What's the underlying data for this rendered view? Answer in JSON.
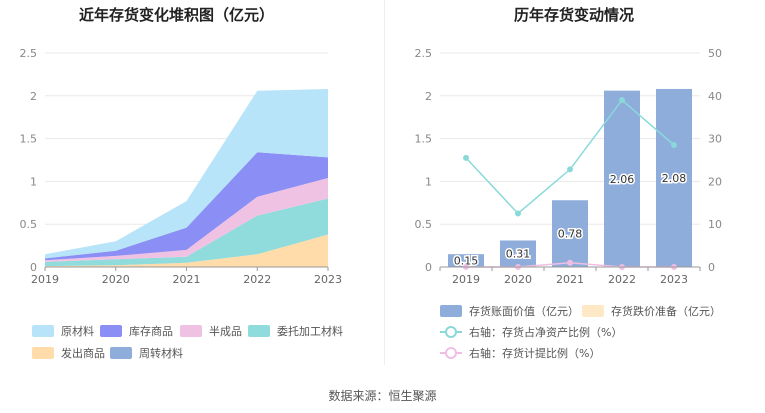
{
  "left_chart": {
    "title": "近年存货变化堆积图（亿元）",
    "legend": [
      {
        "label": "原材料",
        "color": "#b7e4f8"
      },
      {
        "label": "库存商品",
        "color": "#8b8ef5"
      },
      {
        "label": "半成品",
        "color": "#efc2e4"
      },
      {
        "label": "委托加工材料",
        "color": "#90dbdb"
      },
      {
        "label": "发出商品",
        "color": "#ffdcaa"
      },
      {
        "label": "周转材料",
        "color": "#8faddb"
      }
    ]
  },
  "right_chart": {
    "title": "历年存货变动情况",
    "legend": [
      {
        "label": "存货账面价值（亿元）",
        "color": "#8faddb",
        "kind": "box"
      },
      {
        "label": "存货跌价准备（亿元）",
        "color": "#ffe8c6",
        "kind": "box"
      },
      {
        "label": "右轴：存货占净资产比例（%）",
        "color": "#8ad9d9",
        "kind": "line"
      },
      {
        "label": "右轴：存货计提比例（%）",
        "color": "#efbfe3",
        "kind": "line"
      }
    ]
  },
  "source": "数据来源：恒生聚源",
  "chart_data": [
    {
      "type": "area",
      "stacked": true,
      "title": "近年存货变化堆积图（亿元）",
      "x": [
        "2019",
        "2020",
        "2021",
        "2022",
        "2023"
      ],
      "ylim": [
        0,
        2.5
      ],
      "yticks": [
        "0",
        "0.5",
        "1",
        "1.5",
        "2",
        "2.5"
      ],
      "grid": true,
      "legend_position": "bottom",
      "series": [
        {
          "name": "发出商品",
          "color": "#ffdcaa",
          "values": [
            0.01,
            0.02,
            0.05,
            0.15,
            0.38
          ]
        },
        {
          "name": "委托加工材料",
          "color": "#90dbdb",
          "values": [
            0.05,
            0.07,
            0.07,
            0.45,
            0.42
          ]
        },
        {
          "name": "半成品",
          "color": "#efc2e4",
          "values": [
            0.02,
            0.04,
            0.08,
            0.22,
            0.24
          ]
        },
        {
          "name": "库存商品",
          "color": "#8b8ef5",
          "values": [
            0.02,
            0.06,
            0.26,
            0.52,
            0.24
          ]
        },
        {
          "name": "原材料",
          "color": "#b7e4f8",
          "values": [
            0.05,
            0.11,
            0.31,
            0.72,
            0.8
          ]
        },
        {
          "name": "周转材料",
          "color": "#8faddb",
          "values": [
            0,
            0,
            0,
            0,
            0
          ]
        }
      ]
    },
    {
      "type": "bar",
      "title": "历年存货变动情况",
      "categories": [
        "2019",
        "2020",
        "2021",
        "2022",
        "2023"
      ],
      "ylim": [
        0,
        2.5
      ],
      "yticks": [
        "0",
        "0.5",
        "1",
        "1.5",
        "2",
        "2.5"
      ],
      "y2lim": [
        0,
        50
      ],
      "y2ticks": [
        "0",
        "10",
        "20",
        "30",
        "40",
        "50"
      ],
      "grid": true,
      "legend_position": "bottom",
      "series": [
        {
          "name": "存货账面价值（亿元）",
          "type": "bar",
          "axis": "left",
          "color": "#8faddb",
          "values": [
            0.15,
            0.31,
            0.78,
            2.06,
            2.08
          ],
          "labels": [
            "0.15",
            "0.31",
            "0.78",
            "2.06",
            "2.08"
          ]
        },
        {
          "name": "存货跌价准备（亿元）",
          "type": "bar",
          "axis": "left",
          "color": "#ffe8c6",
          "values": [
            0,
            0,
            0,
            0,
            0
          ]
        },
        {
          "name": "右轴：存货占净资产比例（%）",
          "type": "line",
          "axis": "right",
          "color": "#8ad9d9",
          "values": [
            25.5,
            12.5,
            22.8,
            39.0,
            28.5
          ]
        },
        {
          "name": "右轴：存货计提比例（%）",
          "type": "line",
          "axis": "right",
          "color": "#efbfe3",
          "values": [
            0,
            0,
            1.0,
            0,
            0
          ]
        }
      ]
    }
  ]
}
